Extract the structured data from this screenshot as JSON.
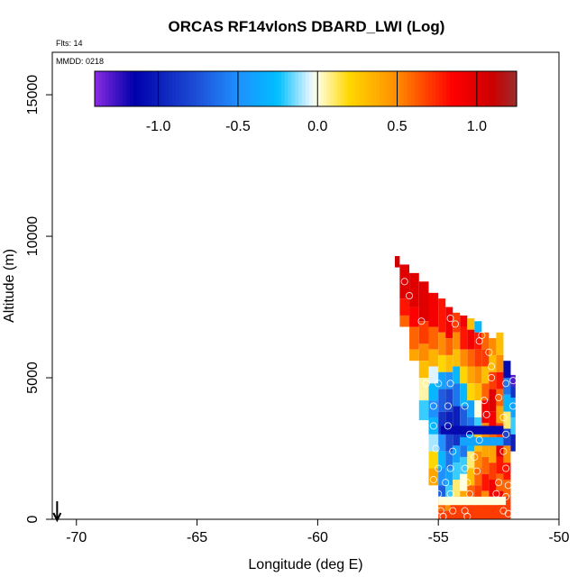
{
  "chart_data": {
    "type": "heatmap",
    "title": "ORCAS RF14vlonS DBARD_LWI (Log)",
    "annotations": {
      "flights": "Flts: 14",
      "date": "MMDD: 0218"
    },
    "xlabel": "Longitude (deg E)",
    "ylabel": "Altitude (m)",
    "xlim": [
      -71,
      -50
    ],
    "ylim": [
      0,
      16500
    ],
    "x_ticks": [
      -70,
      -65,
      -60,
      -55,
      -50
    ],
    "y_ticks": [
      0,
      5000,
      10000,
      15000
    ],
    "colorbar": {
      "orientation": "horizontal",
      "range": [
        -1.4,
        1.25
      ],
      "ticks": [
        -1.0,
        -0.5,
        0.0,
        0.5,
        1.0
      ],
      "tick_labels": [
        "-1.0",
        "-0.5",
        "0.0",
        "0.5",
        "1.0"
      ],
      "color_stops": [
        {
          "v": -1.4,
          "c": "#8a2be2"
        },
        {
          "v": -1.15,
          "c": "#0000aa"
        },
        {
          "v": -0.75,
          "c": "#1e50d8"
        },
        {
          "v": -0.5,
          "c": "#1e90ff"
        },
        {
          "v": -0.25,
          "c": "#00bfff"
        },
        {
          "v": -0.05,
          "c": "#e0f4ff"
        },
        {
          "v": 0.0,
          "c": "#ffffe0"
        },
        {
          "v": 0.2,
          "c": "#ffd700"
        },
        {
          "v": 0.5,
          "c": "#ff8c00"
        },
        {
          "v": 0.85,
          "c": "#ff0000"
        },
        {
          "v": 1.1,
          "c": "#cc0000"
        },
        {
          "v": 1.25,
          "c": "#9b2d2d"
        }
      ]
    },
    "profiles": [
      {
        "x0": -56.8,
        "x1": -56.6,
        "cells": [
          [
            8900,
            9300,
            1.1
          ]
        ]
      },
      {
        "x0": -56.6,
        "x1": -56.2,
        "cells": [
          [
            7800,
            9000,
            1.0
          ],
          [
            7200,
            7800,
            0.8
          ],
          [
            6800,
            7200,
            0.6
          ]
        ]
      },
      {
        "x0": -56.2,
        "x1": -55.8,
        "cells": [
          [
            7500,
            8700,
            1.0
          ],
          [
            6800,
            7500,
            0.85
          ],
          [
            6000,
            6800,
            0.6
          ],
          [
            5600,
            6000,
            0.4
          ]
        ]
      },
      {
        "x0": -55.8,
        "x1": -55.4,
        "cells": [
          [
            7000,
            8400,
            1.0
          ],
          [
            6200,
            7000,
            0.7
          ],
          [
            5600,
            6200,
            0.5
          ],
          [
            5000,
            5600,
            0.3
          ],
          [
            4200,
            5000,
            0.05
          ],
          [
            3500,
            4200,
            -0.2
          ]
        ]
      },
      {
        "x0": -55.4,
        "x1": -55.0,
        "cells": [
          [
            6800,
            8000,
            0.9
          ],
          [
            6000,
            6800,
            0.6
          ],
          [
            5400,
            6000,
            0.35
          ],
          [
            4800,
            5400,
            -0.05
          ],
          [
            4200,
            4800,
            -0.3
          ],
          [
            3600,
            4200,
            -0.5
          ],
          [
            3000,
            3600,
            -0.3
          ],
          [
            2400,
            3000,
            -0.1
          ],
          [
            1800,
            2400,
            0.2
          ],
          [
            1200,
            1800,
            0.4
          ]
        ]
      },
      {
        "x0": -55.0,
        "x1": -54.7,
        "cells": [
          [
            6600,
            7800,
            0.8
          ],
          [
            5800,
            6600,
            0.5
          ],
          [
            5200,
            5800,
            0.2
          ],
          [
            4600,
            5200,
            -0.4
          ],
          [
            3800,
            4600,
            -0.7
          ],
          [
            3000,
            3800,
            -0.9
          ],
          [
            2400,
            3000,
            -0.5
          ],
          [
            1800,
            2400,
            -0.3
          ],
          [
            1200,
            1800,
            -0.5
          ],
          [
            700,
            1200,
            -0.7
          ],
          [
            300,
            700,
            0.6
          ],
          [
            0,
            300,
            0.7
          ]
        ]
      },
      {
        "x0": -54.7,
        "x1": -54.4,
        "cells": [
          [
            6400,
            7500,
            0.9
          ],
          [
            5800,
            6400,
            0.6
          ],
          [
            5200,
            5800,
            0.3
          ],
          [
            4600,
            5200,
            -0.5
          ],
          [
            3800,
            4600,
            -0.8
          ],
          [
            3000,
            3800,
            -1.0
          ],
          [
            2400,
            3000,
            -0.8
          ],
          [
            1800,
            2400,
            -0.6
          ],
          [
            1200,
            1800,
            -0.4
          ],
          [
            700,
            1200,
            -0.2
          ],
          [
            300,
            700,
            0.5
          ],
          [
            0,
            300,
            0.7
          ]
        ]
      },
      {
        "x0": -54.4,
        "x1": -54.1,
        "cells": [
          [
            6600,
            7300,
            0.7
          ],
          [
            6000,
            6600,
            0.5
          ],
          [
            5400,
            6000,
            0.3
          ],
          [
            4800,
            5400,
            -0.3
          ],
          [
            4000,
            4800,
            -0.6
          ],
          [
            3200,
            4000,
            -1.0
          ],
          [
            2600,
            3200,
            -0.9
          ],
          [
            2000,
            2600,
            -0.4
          ],
          [
            1400,
            2000,
            -0.2
          ],
          [
            800,
            1400,
            0.1
          ],
          [
            300,
            800,
            0.5
          ],
          [
            0,
            300,
            0.6
          ]
        ]
      },
      {
        "x0": -54.1,
        "x1": -53.8,
        "cells": [
          [
            6800,
            7200,
            0.9
          ],
          [
            6000,
            6800,
            0.8
          ],
          [
            5400,
            6000,
            0.5
          ],
          [
            4800,
            5400,
            0.2
          ],
          [
            4000,
            4800,
            -0.3
          ],
          [
            3200,
            4000,
            -0.7
          ],
          [
            2800,
            3200,
            -0.9
          ],
          [
            2200,
            2800,
            -0.6
          ],
          [
            1600,
            2200,
            -0.2
          ],
          [
            1000,
            1600,
            0.0
          ],
          [
            400,
            1000,
            0.4
          ],
          [
            0,
            400,
            0.5
          ]
        ]
      },
      {
        "x0": -53.8,
        "x1": -53.5,
        "cells": [
          [
            6700,
            7100,
            0.3
          ],
          [
            6000,
            6700,
            0.9
          ],
          [
            5400,
            6000,
            0.6
          ],
          [
            4800,
            5400,
            0.4
          ],
          [
            4200,
            4800,
            0.2
          ],
          [
            3600,
            4200,
            -0.4
          ],
          [
            3000,
            3600,
            -0.6
          ],
          [
            2400,
            3000,
            -0.3
          ],
          [
            1800,
            2400,
            0.1
          ],
          [
            1200,
            1800,
            0.3
          ],
          [
            600,
            1200,
            0.6
          ],
          [
            0,
            600,
            0.5
          ]
        ]
      },
      {
        "x0": -53.5,
        "x1": -53.2,
        "cells": [
          [
            6600,
            7000,
            -0.3
          ],
          [
            6000,
            6600,
            0.8
          ],
          [
            5400,
            6000,
            0.7
          ],
          [
            4800,
            5400,
            0.5
          ],
          [
            4200,
            4800,
            0.3
          ],
          [
            3600,
            4200,
            0.0
          ],
          [
            3000,
            3600,
            -0.2
          ],
          [
            2400,
            3000,
            0.3
          ],
          [
            1800,
            2400,
            0.5
          ],
          [
            1200,
            1800,
            0.6
          ],
          [
            600,
            1200,
            0.7
          ],
          [
            200,
            600,
            0.6
          ]
        ]
      },
      {
        "x0": -53.2,
        "x1": -52.9,
        "cells": [
          [
            6000,
            6600,
            0.6
          ],
          [
            5400,
            6000,
            0.7
          ],
          [
            4800,
            5400,
            0.3
          ],
          [
            4200,
            4800,
            0.6
          ],
          [
            3400,
            4200,
            0.9
          ],
          [
            2800,
            3400,
            0.5
          ],
          [
            2200,
            2800,
            0.4
          ],
          [
            1600,
            2200,
            0.6
          ],
          [
            1000,
            1600,
            0.8
          ],
          [
            600,
            1000,
            0.5
          ],
          [
            200,
            600,
            0.7
          ]
        ]
      },
      {
        "x0": -52.9,
        "x1": -52.6,
        "cells": [
          [
            5800,
            6400,
            0.5
          ],
          [
            5200,
            5800,
            0.3
          ],
          [
            4600,
            5200,
            0.7
          ],
          [
            3800,
            4600,
            1.0
          ],
          [
            3200,
            3800,
            0.9
          ],
          [
            2600,
            3200,
            0.6
          ],
          [
            2000,
            2600,
            0.4
          ],
          [
            1400,
            2000,
            0.7
          ],
          [
            800,
            1400,
            0.9
          ],
          [
            300,
            800,
            0.6
          ]
        ]
      },
      {
        "x0": -52.6,
        "x1": -52.3,
        "cells": [
          [
            5800,
            6600,
            0.3
          ],
          [
            5200,
            5800,
            0.5
          ],
          [
            4600,
            5200,
            0.8
          ],
          [
            4000,
            4600,
            0.6
          ],
          [
            3400,
            4000,
            0.4
          ],
          [
            2800,
            3400,
            0.7
          ],
          [
            2200,
            2800,
            1.0
          ],
          [
            1600,
            2200,
            0.8
          ],
          [
            1000,
            1600,
            0.6
          ],
          [
            400,
            1000,
            0.9
          ],
          [
            200,
            400,
            0.7
          ]
        ]
      },
      {
        "x0": -52.3,
        "x1": -52.0,
        "cells": [
          [
            5000,
            5600,
            -1.1
          ],
          [
            4400,
            5000,
            -0.6
          ],
          [
            3800,
            4400,
            -0.3
          ],
          [
            3200,
            3800,
            0.1
          ],
          [
            2600,
            3200,
            -0.8
          ],
          [
            2000,
            2600,
            0.5
          ],
          [
            1400,
            2000,
            0.8
          ],
          [
            800,
            1400,
            0.6
          ],
          [
            200,
            800,
            0.7
          ]
        ]
      },
      {
        "x0": -52.0,
        "x1": -51.8,
        "cells": [
          [
            4700,
            5100,
            -1.3
          ],
          [
            4300,
            4700,
            -0.9
          ],
          [
            3600,
            4300,
            -0.4
          ],
          [
            3000,
            3600,
            -0.2
          ],
          [
            2400,
            3000,
            -1.0
          ]
        ]
      }
    ],
    "bands": [
      {
        "x0": -54.9,
        "x1": -52.3,
        "y0": 3000,
        "y1": 3300,
        "v": -1.1
      },
      {
        "x0": -54.1,
        "x1": -52.3,
        "y0": 2600,
        "y1": 2900,
        "v": -0.4
      },
      {
        "x0": -55.0,
        "x1": -52.2,
        "y0": 500,
        "y1": 800,
        "v": 0.0
      },
      {
        "x0": -54.5,
        "x1": -52.0,
        "y0": 0,
        "y1": 500,
        "v": 0.7
      }
    ],
    "points": [
      [
        -56.4,
        8400
      ],
      [
        -56.2,
        7900
      ],
      [
        -55.7,
        7000
      ],
      [
        -54.5,
        7100
      ],
      [
        -54.3,
        6900
      ],
      [
        -53.3,
        6300
      ],
      [
        -53.2,
        6500
      ],
      [
        -52.9,
        5900
      ],
      [
        -52.8,
        5400
      ],
      [
        -52.8,
        5000
      ],
      [
        -52.2,
        4800
      ],
      [
        -51.9,
        4900
      ],
      [
        -55.5,
        4800
      ],
      [
        -55.0,
        4800
      ],
      [
        -54.5,
        4800
      ],
      [
        -55.2,
        4000
      ],
      [
        -54.6,
        4000
      ],
      [
        -53.9,
        4000
      ],
      [
        -53.1,
        4200
      ],
      [
        -52.5,
        4300
      ],
      [
        -53.0,
        3700
      ],
      [
        -52.3,
        3600
      ],
      [
        -51.9,
        4000
      ],
      [
        -55.2,
        3300
      ],
      [
        -54.6,
        3300
      ],
      [
        -53.7,
        3000
      ],
      [
        -53.3,
        2800
      ],
      [
        -52.2,
        3000
      ],
      [
        -55.1,
        2500
      ],
      [
        -54.4,
        2400
      ],
      [
        -53.5,
        2200
      ],
      [
        -52.3,
        2400
      ],
      [
        -55.0,
        1800
      ],
      [
        -54.5,
        1800
      ],
      [
        -53.9,
        1800
      ],
      [
        -53.4,
        1700
      ],
      [
        -52.2,
        1800
      ],
      [
        -55.2,
        1400
      ],
      [
        -54.7,
        1300
      ],
      [
        -53.8,
        1300
      ],
      [
        -52.5,
        1300
      ],
      [
        -52.1,
        1200
      ],
      [
        -55.0,
        900
      ],
      [
        -54.5,
        900
      ],
      [
        -53.7,
        900
      ],
      [
        -52.6,
        900
      ],
      [
        -52.2,
        800
      ],
      [
        -54.9,
        300
      ],
      [
        -54.4,
        300
      ],
      [
        -53.9,
        300
      ],
      [
        -52.3,
        300
      ],
      [
        -52.1,
        200
      ],
      [
        -54.8,
        100
      ],
      [
        -53.8,
        100
      ]
    ],
    "arrow": {
      "x": -70.8
    }
  }
}
